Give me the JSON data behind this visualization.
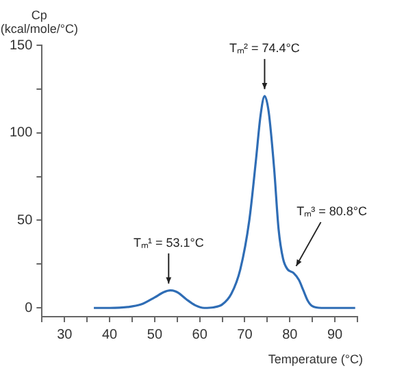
{
  "chart_data": {
    "type": "line",
    "ylabel": "Cp\n(kcal/mole/°C)",
    "xlabel": "Temperature (°C)",
    "x": [
      36.5,
      40,
      44,
      47,
      50,
      52,
      53.5,
      55,
      57,
      59,
      61,
      63,
      65,
      67,
      69,
      71,
      72.5,
      73.5,
      74.4,
      75.3,
      76.5,
      77.5,
      78.5,
      79.5,
      80.8,
      82,
      83,
      84,
      85,
      87,
      90,
      94.5
    ],
    "series": [
      {
        "color": "#2f6db5",
        "values": [
          0,
          0,
          0.5,
          2,
          6,
          9,
          10,
          9,
          5,
          1.5,
          0,
          0.3,
          2,
          8,
          22,
          50,
          85,
          110,
          121,
          112,
          80,
          45,
          28,
          22,
          20,
          16,
          10,
          4,
          1,
          0,
          0,
          0
        ]
      }
    ],
    "xlim": [
      25,
      95
    ],
    "xticks": [
      {
        "value": 25,
        "label": null
      },
      30,
      {
        "value": 35,
        "label": null
      },
      40,
      {
        "value": 45,
        "label": null
      },
      50,
      {
        "value": 55,
        "label": null
      },
      60,
      {
        "value": 65,
        "label": null
      },
      70,
      {
        "value": 75,
        "label": null
      },
      80,
      {
        "value": 85,
        "label": null
      },
      90,
      {
        "value": 95,
        "label": null
      }
    ],
    "ylim": [
      -5,
      150
    ],
    "yticks": [
      0,
      {
        "value": 25,
        "label": null
      },
      50,
      {
        "value": 75,
        "label": null
      },
      100,
      {
        "value": 125,
        "label": null
      },
      150
    ],
    "annotations": [
      {
        "text": "Tₘ¹ = 53.1°C",
        "x": 53.1,
        "y": 10
      },
      {
        "text": "Tₘ² = 74.4°C",
        "x": 74.4,
        "y": 121
      },
      {
        "text": "Tₘ³ = 80.8°C",
        "x": 80.8,
        "y": 20
      }
    ],
    "grid": false,
    "legend": false,
    "marker": "none",
    "line_style": "solid"
  }
}
